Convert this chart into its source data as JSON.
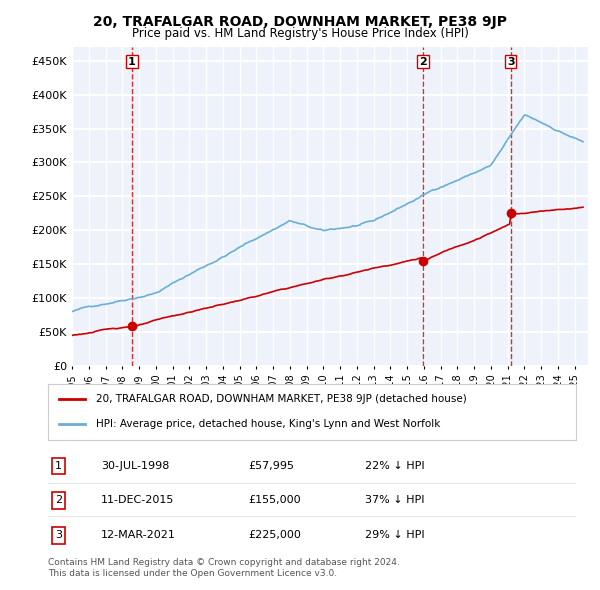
{
  "title": "20, TRAFALGAR ROAD, DOWNHAM MARKET, PE38 9JP",
  "subtitle": "Price paid vs. HM Land Registry's House Price Index (HPI)",
  "ylim": [
    0,
    470000
  ],
  "yticks": [
    0,
    50000,
    100000,
    150000,
    200000,
    250000,
    300000,
    350000,
    400000,
    450000
  ],
  "ytick_labels": [
    "£0",
    "£50K",
    "£100K",
    "£150K",
    "£200K",
    "£250K",
    "£300K",
    "£350K",
    "£400K",
    "£450K"
  ],
  "hpi_color": "#6baed6",
  "price_color": "#cc0000",
  "vline_color": "#cc0000",
  "background_color": "#eef2fb",
  "grid_color": "#ffffff",
  "sale_points": [
    {
      "date_num": 1998.58,
      "price": 57995,
      "label": "1",
      "date_str": "30-JUL-1998",
      "pct": "22%"
    },
    {
      "date_num": 2015.95,
      "price": 155000,
      "label": "2",
      "date_str": "11-DEC-2015",
      "pct": "37%"
    },
    {
      "date_num": 2021.19,
      "price": 225000,
      "label": "3",
      "date_str": "12-MAR-2021",
      "pct": "29%"
    }
  ],
  "legend_line1": "20, TRAFALGAR ROAD, DOWNHAM MARKET, PE38 9JP (detached house)",
  "legend_line2": "HPI: Average price, detached house, King's Lynn and West Norfolk",
  "footer1": "Contains HM Land Registry data © Crown copyright and database right 2024.",
  "footer2": "This data is licensed under the Open Government Licence v3.0.",
  "table_rows": [
    [
      "1",
      "30-JUL-1998",
      "£57,995",
      "22% ↓ HPI"
    ],
    [
      "2",
      "11-DEC-2015",
      "£155,000",
      "37% ↓ HPI"
    ],
    [
      "3",
      "12-MAR-2021",
      "£225,000",
      "29% ↓ HPI"
    ]
  ]
}
